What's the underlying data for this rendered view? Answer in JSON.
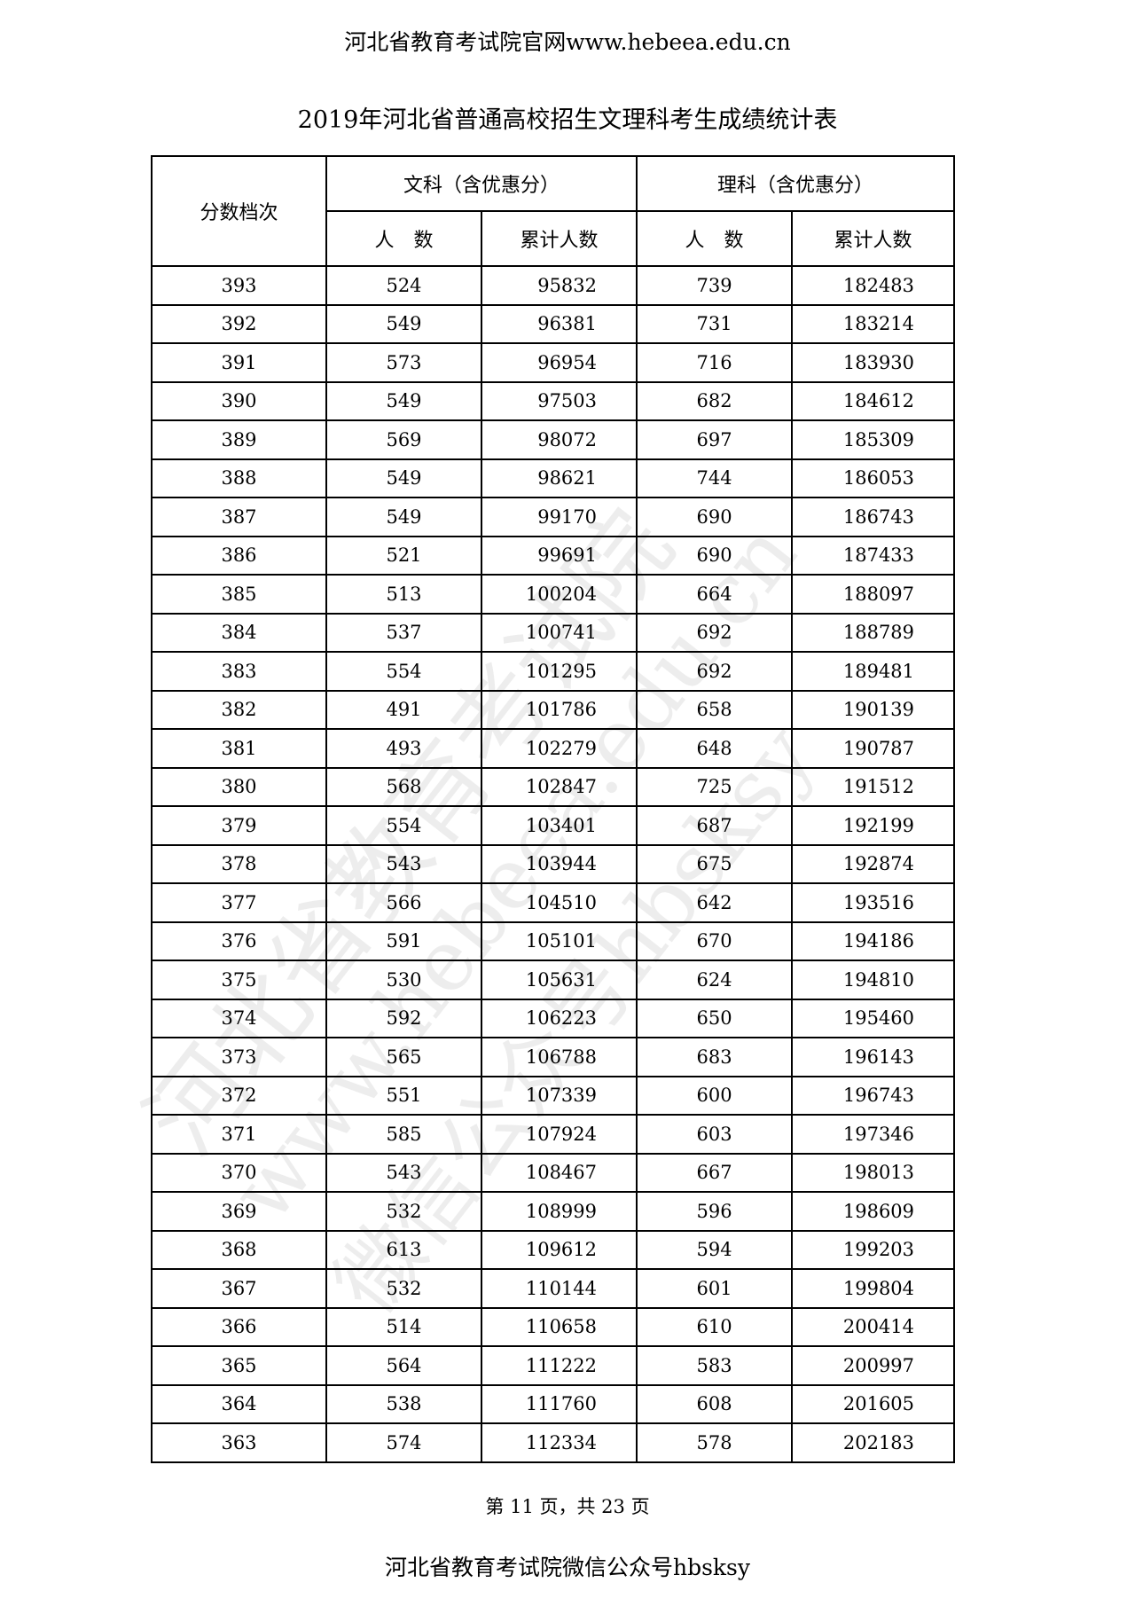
{
  "header_line": "河北省教育考试院官网www.hebeea.edu.cn",
  "title": "2019年河北省普通高校招生文理科考生成绩统计表",
  "table": {
    "score_header": "分数档次",
    "liberal_header": "文科（含优惠分）",
    "science_header": "理科（含优惠分）",
    "count_header": "人　数",
    "cumulative_header": "累计人数",
    "rows": [
      [
        "393",
        "524",
        "95832",
        "739",
        "182483"
      ],
      [
        "392",
        "549",
        "96381",
        "731",
        "183214"
      ],
      [
        "391",
        "573",
        "96954",
        "716",
        "183930"
      ],
      [
        "390",
        "549",
        "97503",
        "682",
        "184612"
      ],
      [
        "389",
        "569",
        "98072",
        "697",
        "185309"
      ],
      [
        "388",
        "549",
        "98621",
        "744",
        "186053"
      ],
      [
        "387",
        "549",
        "99170",
        "690",
        "186743"
      ],
      [
        "386",
        "521",
        "99691",
        "690",
        "187433"
      ],
      [
        "385",
        "513",
        "100204",
        "664",
        "188097"
      ],
      [
        "384",
        "537",
        "100741",
        "692",
        "188789"
      ],
      [
        "383",
        "554",
        "101295",
        "692",
        "189481"
      ],
      [
        "382",
        "491",
        "101786",
        "658",
        "190139"
      ],
      [
        "381",
        "493",
        "102279",
        "648",
        "190787"
      ],
      [
        "380",
        "568",
        "102847",
        "725",
        "191512"
      ],
      [
        "379",
        "554",
        "103401",
        "687",
        "192199"
      ],
      [
        "378",
        "543",
        "103944",
        "675",
        "192874"
      ],
      [
        "377",
        "566",
        "104510",
        "642",
        "193516"
      ],
      [
        "376",
        "591",
        "105101",
        "670",
        "194186"
      ],
      [
        "375",
        "530",
        "105631",
        "624",
        "194810"
      ],
      [
        "374",
        "592",
        "106223",
        "650",
        "195460"
      ],
      [
        "373",
        "565",
        "106788",
        "683",
        "196143"
      ],
      [
        "372",
        "551",
        "107339",
        "600",
        "196743"
      ],
      [
        "371",
        "585",
        "107924",
        "603",
        "197346"
      ],
      [
        "370",
        "543",
        "108467",
        "667",
        "198013"
      ],
      [
        "369",
        "532",
        "108999",
        "596",
        "198609"
      ],
      [
        "368",
        "613",
        "109612",
        "594",
        "199203"
      ],
      [
        "367",
        "532",
        "110144",
        "601",
        "199804"
      ],
      [
        "366",
        "514",
        "110658",
        "610",
        "200414"
      ],
      [
        "365",
        "564",
        "111222",
        "583",
        "200997"
      ],
      [
        "364",
        "538",
        "111760",
        "608",
        "201605"
      ],
      [
        "363",
        "574",
        "112334",
        "578",
        "202183"
      ]
    ]
  },
  "page_indicator": "第 11 页，共 23 页",
  "footer": "河北省教育考试院微信公众号hbsksy",
  "watermark": [
    "河北省教育考试院",
    "www.hebeea.edu.cn",
    "微信公众号hbsksy"
  ]
}
